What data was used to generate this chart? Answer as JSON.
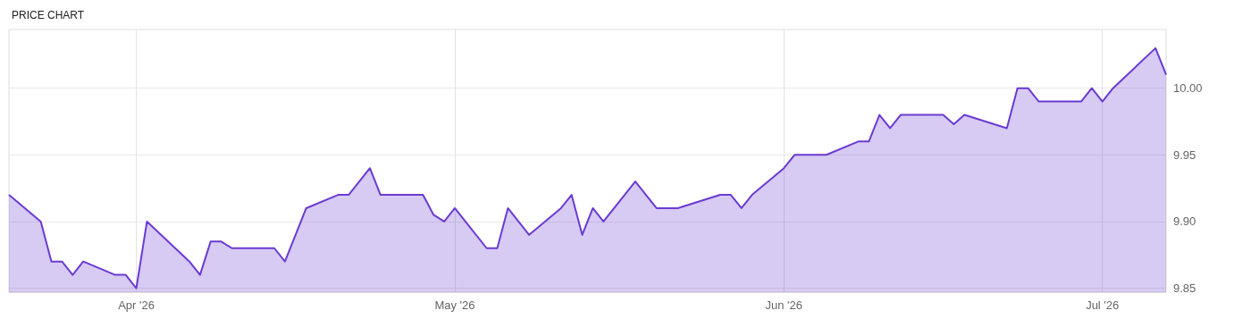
{
  "chart_data": {
    "type": "area",
    "title": "PRICE CHART",
    "x": [
      "2026-03-20",
      "2026-03-23",
      "2026-03-24",
      "2026-03-25",
      "2026-03-26",
      "2026-03-27",
      "2026-03-30",
      "2026-03-31",
      "2026-04-01",
      "2026-04-02",
      "2026-04-06",
      "2026-04-07",
      "2026-04-08",
      "2026-04-09",
      "2026-04-10",
      "2026-04-14",
      "2026-04-15",
      "2026-04-17",
      "2026-04-20",
      "2026-04-21",
      "2026-04-23",
      "2026-04-24",
      "2026-04-28",
      "2026-04-29",
      "2026-04-30",
      "2026-05-01",
      "2026-05-04",
      "2026-05-05",
      "2026-05-06",
      "2026-05-08",
      "2026-05-11",
      "2026-05-12",
      "2026-05-13",
      "2026-05-14",
      "2026-05-15",
      "2026-05-18",
      "2026-05-20",
      "2026-05-22",
      "2026-05-26",
      "2026-05-27",
      "2026-05-28",
      "2026-05-29",
      "2026-06-01",
      "2026-06-02",
      "2026-06-05",
      "2026-06-08",
      "2026-06-09",
      "2026-06-10",
      "2026-06-11",
      "2026-06-12",
      "2026-06-16",
      "2026-06-17",
      "2026-06-18",
      "2026-06-22",
      "2026-06-23",
      "2026-06-24",
      "2026-06-25",
      "2026-06-26",
      "2026-06-29",
      "2026-06-30",
      "2026-07-01",
      "2026-07-02",
      "2026-07-06",
      "2026-07-07"
    ],
    "series": [
      {
        "color": "#6a3bd2",
        "values": [
          9.92,
          9.9,
          9.87,
          9.87,
          9.86,
          9.87,
          9.86,
          9.86,
          9.85,
          9.9,
          9.87,
          9.86,
          9.885,
          9.885,
          9.88,
          9.88,
          9.87,
          9.91,
          9.92,
          9.92,
          9.94,
          9.92,
          9.92,
          9.905,
          9.9,
          9.91,
          9.88,
          9.88,
          9.91,
          9.89,
          9.91,
          9.92,
          9.89,
          9.91,
          9.9,
          9.93,
          9.91,
          9.91,
          9.92,
          9.92,
          9.91,
          9.92,
          9.94,
          9.95,
          9.95,
          9.96,
          9.96,
          9.98,
          9.97,
          9.98,
          9.98,
          9.973,
          9.98,
          9.97,
          10.0,
          10.0,
          9.99,
          9.99,
          9.99,
          10.0,
          9.99,
          10.0,
          10.03,
          10.01
        ]
      }
    ],
    "xlim": [
      "2026-03-20",
      "2026-07-07"
    ],
    "xticks": [
      {
        "value": "2026-04-01",
        "label": "Apr '26"
      },
      {
        "value": "2026-05-01",
        "label": "May '26"
      },
      {
        "value": "2026-06-01",
        "label": "Jun '26"
      },
      {
        "value": "2026-07-01",
        "label": "Jul '26"
      }
    ],
    "ylim": [
      9.847,
      10.044
    ],
    "yticks": [
      {
        "value": 9.85,
        "label": "9.85"
      },
      {
        "value": 9.9,
        "label": "9.90"
      },
      {
        "value": 9.95,
        "label": "9.95"
      },
      {
        "value": 10,
        "label": "10.00"
      }
    ],
    "grid": true
  }
}
